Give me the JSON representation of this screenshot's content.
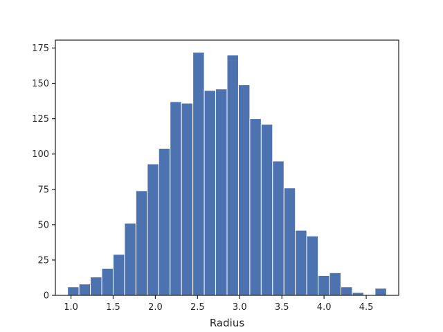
{
  "chart_data": {
    "type": "bar",
    "title": "",
    "xlabel": "Radius",
    "ylabel": "",
    "bin_edges": [
      0.96,
      1.095,
      1.23,
      1.365,
      1.5,
      1.635,
      1.77,
      1.905,
      2.04,
      2.175,
      2.31,
      2.445,
      2.58,
      2.715,
      2.85,
      2.985,
      3.12,
      3.255,
      3.39,
      3.525,
      3.66,
      3.795,
      3.93,
      4.065,
      4.2,
      4.335,
      4.47,
      4.605,
      4.74
    ],
    "values": [
      6,
      8,
      13,
      19,
      29,
      51,
      74,
      93,
      104,
      137,
      136,
      172,
      145,
      146,
      170,
      149,
      125,
      121,
      95,
      76,
      46,
      42,
      14,
      16,
      6,
      2,
      0,
      5
    ],
    "xlim": [
      0.815,
      4.885
    ],
    "ylim": [
      0,
      180.6
    ],
    "xticks": [
      1.0,
      1.5,
      2.0,
      2.5,
      3.0,
      3.5,
      4.0,
      4.5
    ],
    "xtick_labels": [
      "1.0",
      "1.5",
      "2.0",
      "2.5",
      "3.0",
      "3.5",
      "4.0",
      "4.5"
    ],
    "yticks": [
      0,
      25,
      50,
      75,
      100,
      125,
      150,
      175
    ],
    "ytick_labels": [
      "0",
      "25",
      "50",
      "75",
      "100",
      "125",
      "150",
      "175"
    ],
    "bar_color": "#4c72b0",
    "grid": false,
    "legend": "none"
  }
}
